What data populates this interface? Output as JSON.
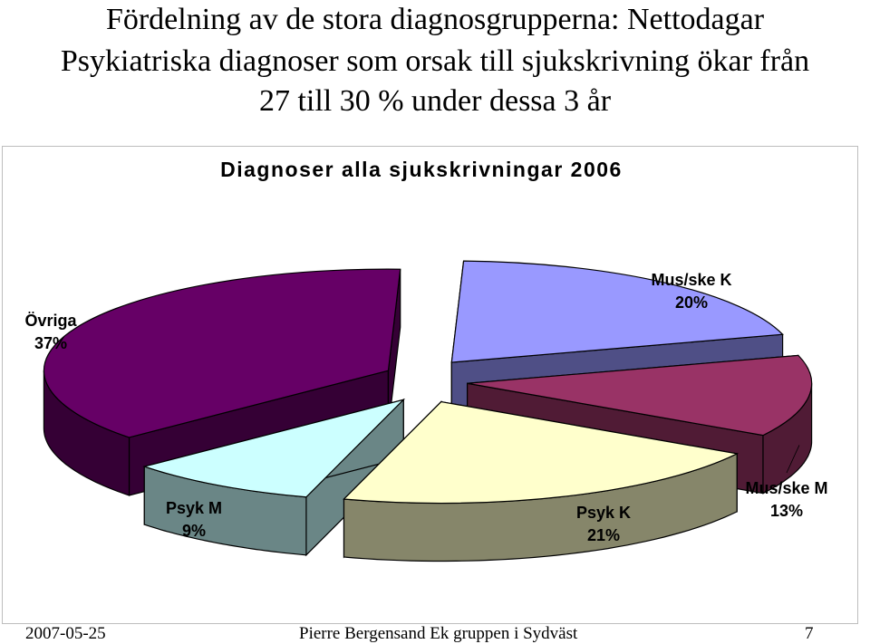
{
  "slide": {
    "title_line1": "Fördelning av de stora diagnosgrupperna: Nettodagar",
    "title_line2": "Psykiatriska diagnoser som orsak till sjukskrivning ökar från",
    "title_line3": "27 till 30 % under dessa 3 år"
  },
  "footer": {
    "date": "2007-05-25",
    "author": "Pierre Bergensand Ek gruppen i Sydväst",
    "page": "7"
  },
  "chart_data": {
    "type": "pie",
    "title": "Diagnoser alla sjukskrivningar 2006",
    "slices": [
      {
        "name": "Mus/ske K",
        "value": 20,
        "label": "20%",
        "top_color": "#9999ff",
        "side_color": "#4f4f86"
      },
      {
        "name": "Mus/ske M",
        "value": 13,
        "label": "13%",
        "top_color": "#993366",
        "side_color": "#501b35"
      },
      {
        "name": "Psyk K",
        "value": 21,
        "label": "21%",
        "top_color": "#ffffcc",
        "side_color": "#86866a"
      },
      {
        "name": "Psyk M",
        "value": 9,
        "label": "9%",
        "top_color": "#ccffff",
        "side_color": "#6a8686"
      },
      {
        "name": "Övriga",
        "value": 37,
        "label": "37%",
        "top_color": "#660066",
        "side_color": "#350035"
      }
    ]
  }
}
